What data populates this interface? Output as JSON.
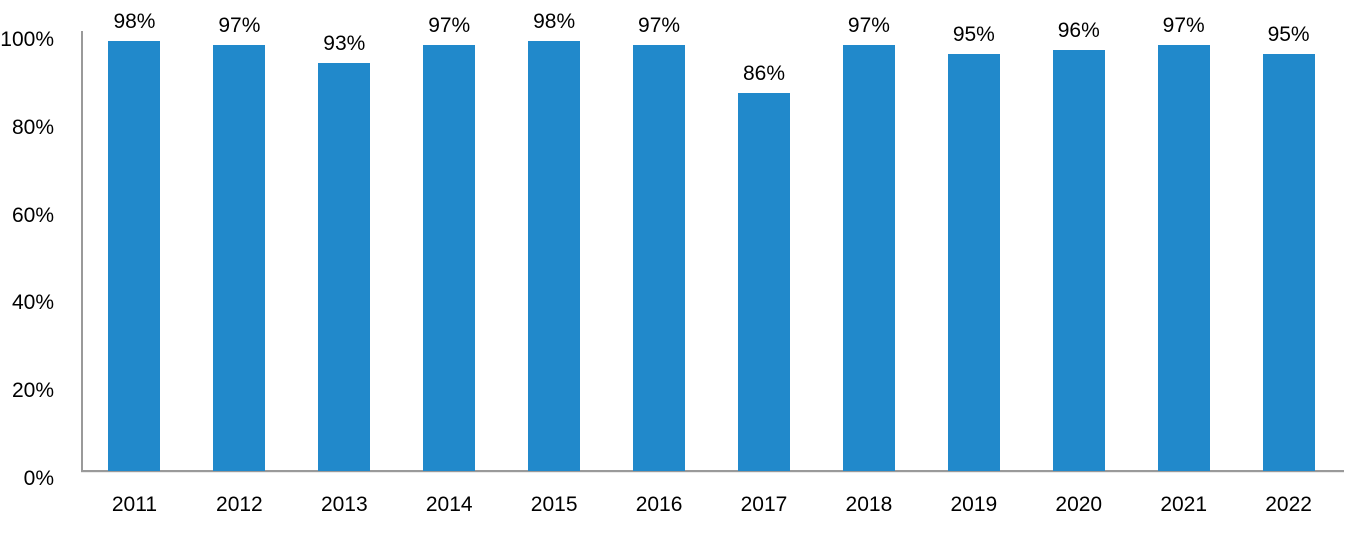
{
  "chart_data": {
    "type": "bar",
    "title": "",
    "xlabel": "",
    "ylabel": "",
    "categories": [
      "2011",
      "2012",
      "2013",
      "2014",
      "2015",
      "2016",
      "2017",
      "2018",
      "2019",
      "2020",
      "2021",
      "2022"
    ],
    "values": [
      98,
      97,
      93,
      97,
      98,
      97,
      86,
      97,
      95,
      96,
      97,
      95
    ],
    "bar_labels": [
      "98%",
      "97%",
      "93%",
      "97%",
      "98%",
      "97%",
      "86%",
      "97%",
      "95%",
      "96%",
      "97%",
      "95%"
    ],
    "yticks": [
      {
        "value": 100,
        "label": "100%"
      },
      {
        "value": 80,
        "label": "80%"
      },
      {
        "value": 60,
        "label": "60%"
      },
      {
        "value": 40,
        "label": "40%"
      },
      {
        "value": 20,
        "label": "20%"
      },
      {
        "value": 0,
        "label": "0%"
      }
    ],
    "ylim": [
      0,
      100
    ],
    "grid": false,
    "legend_position": "none",
    "colors": {
      "bar": "#2189cb",
      "axis_line": "#9a9a9a",
      "label_text": "#000000",
      "background": "#ffffff"
    }
  }
}
